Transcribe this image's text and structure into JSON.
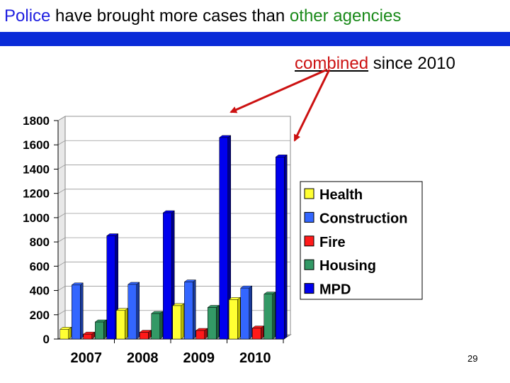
{
  "slide": {
    "title_part1": "Police",
    "title_part2": " have brought more cases than ",
    "title_part3": "other agencies",
    "subtitle_emph": "combined",
    "subtitle_rest": " since 2010",
    "page_number": "29"
  },
  "colors": {
    "band": "#0a2bd8",
    "arrow": "#cc1111"
  },
  "chart_data": {
    "type": "bar",
    "title": "",
    "xlabel": "",
    "ylabel": "",
    "categories": [
      "2007",
      "2008",
      "2009",
      "2010"
    ],
    "ylim": [
      0,
      1800
    ],
    "yticks": [
      0,
      200,
      400,
      600,
      800,
      1000,
      1200,
      1400,
      1600,
      1800
    ],
    "grid": true,
    "legend_position": "right",
    "series": [
      {
        "name": "Health",
        "color": "#ffff33",
        "side": "#b8b800",
        "values": [
          80,
          235,
          275,
          325
        ]
      },
      {
        "name": "Construction",
        "color": "#3366ff",
        "side": "#1a3a99",
        "values": [
          445,
          450,
          470,
          420
        ]
      },
      {
        "name": "Fire",
        "color": "#ff1a1a",
        "side": "#991010",
        "values": [
          40,
          55,
          70,
          90
        ]
      },
      {
        "name": "Housing",
        "color": "#339966",
        "side": "#1c5c3c",
        "values": [
          140,
          210,
          260,
          370
        ]
      },
      {
        "name": "MPD",
        "color": "#0000ee",
        "side": "#000088",
        "values": [
          850,
          1040,
          1660,
          1500
        ]
      }
    ]
  }
}
